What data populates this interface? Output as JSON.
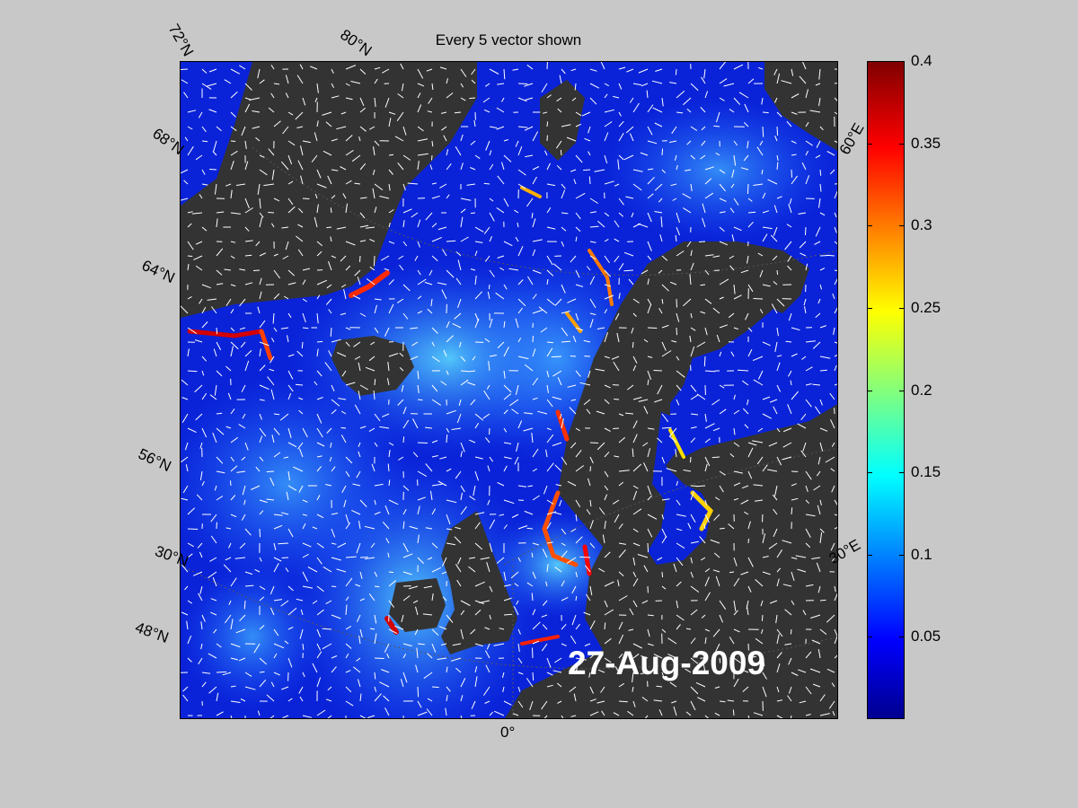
{
  "title": "Every 5 vector shown",
  "date_label": "27-Aug-2009",
  "lat_labels": [
    "72°N",
    "80°N",
    "68°N",
    "64°N",
    "56°N",
    "30°N",
    "48°N"
  ],
  "lon_labels": [
    "0°",
    "30°E",
    "60°E"
  ],
  "colorbar": {
    "ticks": [
      "0.4",
      "0.35",
      "0.3",
      "0.25",
      "0.2",
      "0.15",
      "0.1",
      "0.05"
    ],
    "min": 0,
    "max": 0.4,
    "colormap": "jet"
  },
  "colors": {
    "land": "#333333",
    "background": "#c8c8c8",
    "ocean_low": "#0a23d8",
    "arrows": "#ffffff"
  }
}
